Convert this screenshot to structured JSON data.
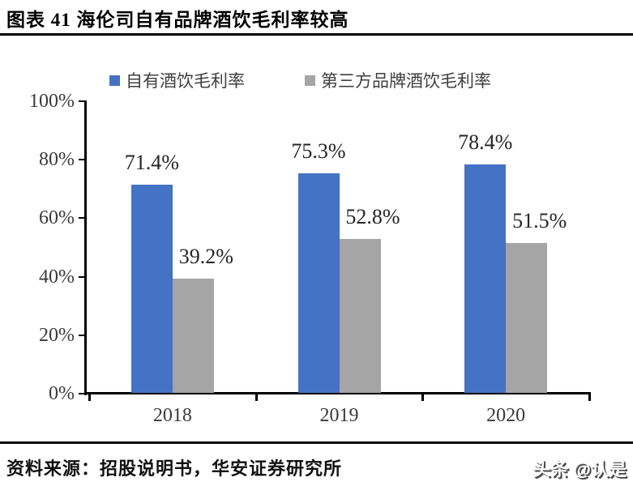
{
  "header": {
    "title": "图表 41 海伦司自有品牌酒饮毛利率较高"
  },
  "chart_data": {
    "type": "bar",
    "categories": [
      "2018",
      "2019",
      "2020"
    ],
    "series": [
      {
        "name": "自有酒饮毛利率",
        "color": "#4472C4",
        "values": [
          71.4,
          75.3,
          78.4
        ]
      },
      {
        "name": "第三方品牌酒饮毛利率",
        "color": "#A5A5A5",
        "values": [
          39.2,
          52.8,
          51.5
        ]
      }
    ],
    "value_label_suffix": "%",
    "title": "",
    "xlabel": "",
    "ylabel": "",
    "ylim": [
      0,
      100
    ],
    "yticks": [
      "0%",
      "20%",
      "40%",
      "60%",
      "80%",
      "100%"
    ],
    "grid": false,
    "legend_position": "top"
  },
  "footer": {
    "source": "资料来源：招股说明书，华安证券研究所",
    "watermark": "头条 @认是"
  }
}
